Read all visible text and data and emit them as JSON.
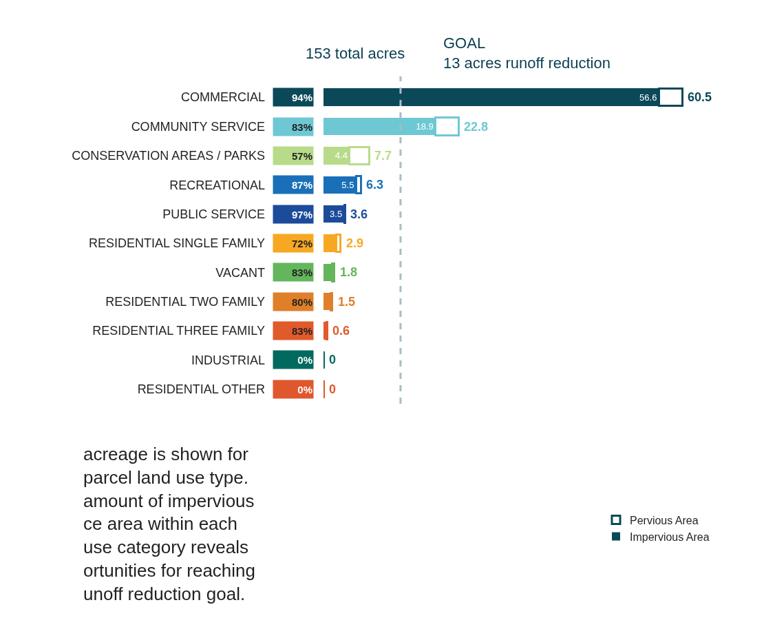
{
  "chart_data": {
    "type": "bar",
    "orientation": "horizontal",
    "stacked": true,
    "categories": [
      "COMMERCIAL",
      "COMMUNITY SERVICE",
      "CONSERVATION AREAS / PARKS",
      "RECREATIONAL",
      "PUBLIC SERVICE",
      "RESIDENTIAL SINGLE FAMILY",
      "VACANT",
      "RESIDENTIAL TWO FAMILY",
      "RESIDENTIAL THREE FAMILY",
      "INDUSTRIAL",
      "RESIDENTIAL OTHER"
    ],
    "series": [
      {
        "name": "Impervious Area",
        "colors": [
          "#0b4858",
          "#6ec8d4",
          "#b8db8a",
          "#1a70b8",
          "#1c4b9a",
          "#f7a823",
          "#63b65c",
          "#e07f2a",
          "#e05a2a",
          "#006a5e",
          "#e0572d"
        ],
        "values": [
          56.6,
          18.9,
          4.4,
          5.5,
          3.5,
          2.1,
          1.5,
          1.2,
          0.5,
          0,
          0
        ],
        "value_labels": [
          "56.6",
          "18.9",
          "4.4",
          "5.5",
          "3.5",
          null,
          null,
          null,
          null,
          null,
          null
        ]
      },
      {
        "name": "Pervious Area",
        "color": "#ffffff",
        "values": [
          3.9,
          3.9,
          3.3,
          0.8,
          0.1,
          0.8,
          0.3,
          0.3,
          0.1,
          0,
          0
        ]
      }
    ],
    "totals": [
      "60.5",
      "22.8",
      "7.7",
      "6.3",
      "3.6",
      "2.9",
      "1.8",
      "1.5",
      "0.6",
      "0",
      "0"
    ],
    "ref_lines": [
      {
        "axis": "x",
        "value": 13,
        "label": "GOAL\n13 acres runoff reduction",
        "color": "#a9bcc4",
        "line_style": "dashed"
      }
    ],
    "annotations": [
      "94%",
      "83%",
      "57%",
      "87%",
      "97%",
      "72%",
      "83%",
      "80%",
      "83%",
      "0%",
      "0%",
      "153 total acres",
      "acreage is shown for\nparcel land use type.\namount of impervious\nce area within each\nuse category reveals\nortunities for reaching\nunoff reduction goal."
    ],
    "tick_labels": "y",
    "grid": false,
    "legend": "bottom right"
  }
}
